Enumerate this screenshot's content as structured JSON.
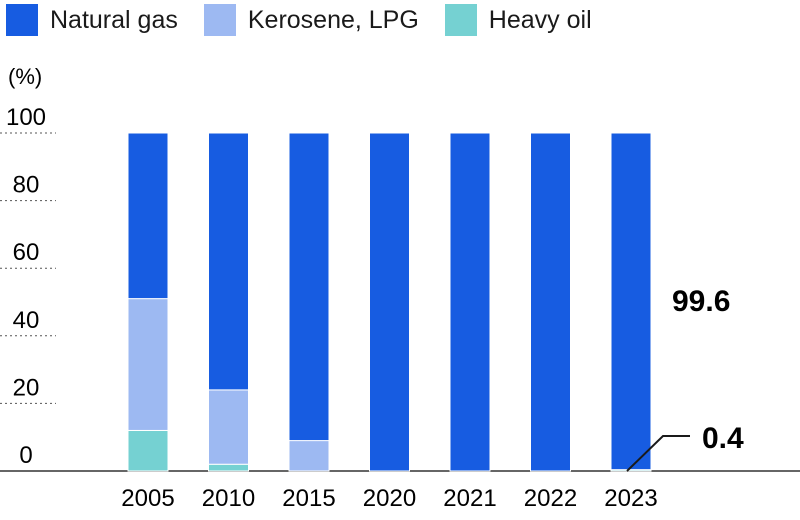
{
  "chart_data": {
    "type": "bar",
    "stacked": true,
    "unit_label": "(%)",
    "categories": [
      "2005",
      "2010",
      "2015",
      "2020",
      "2021",
      "2022",
      "2023"
    ],
    "series": [
      {
        "name": "Natural gas",
        "color": "#175ce1",
        "values": [
          52,
          76,
          91,
          100,
          100,
          100,
          99.6
        ]
      },
      {
        "name": "Kerosene, LPG",
        "color": "#9db9f2",
        "values": [
          39,
          22,
          9,
          0,
          0,
          0,
          0
        ]
      },
      {
        "name": "Heavy oil",
        "color": "#75d1d2",
        "values": [
          12,
          2,
          0,
          0,
          0,
          0,
          0.4
        ]
      }
    ],
    "ylim": [
      0,
      100
    ],
    "yticks": [
      "0",
      "20",
      "40",
      "60",
      "80",
      "100"
    ],
    "grid": true,
    "legend_position": "top-left",
    "annotations": [
      {
        "text": "99.6",
        "series": "Natural gas",
        "category": "2023"
      },
      {
        "text": "0.4",
        "series": "Heavy oil",
        "category": "2023"
      }
    ]
  }
}
